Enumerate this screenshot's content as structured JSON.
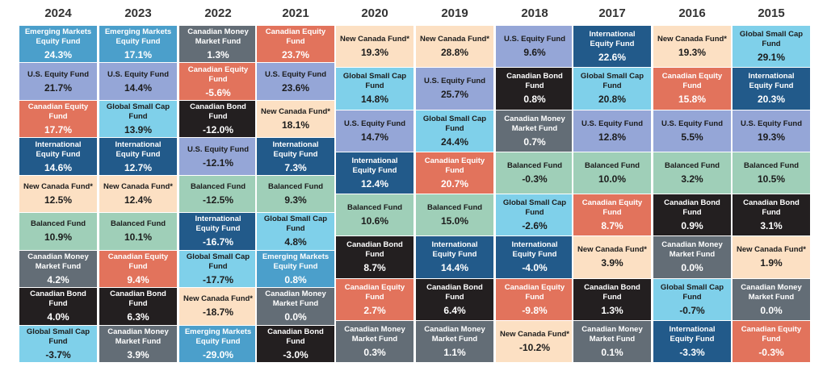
{
  "chart_data": {
    "type": "table",
    "fund_colors": {
      "Emerging Markets Equity Fund": "#4b9fcb",
      "U.S. Equity Fund": "#95a6d7",
      "Canadian Equity Fund": "#e2735c",
      "International Equity Fund": "#225a8a",
      "New Canada Fund*": "#fce0c3",
      "Balanced Fund": "#9fcfb8",
      "Canadian Money Market Fund": "#636d76",
      "Canadian Bond Fund": "#231f20",
      "Global Small Cap Fund": "#7fd0ea"
    },
    "dark_text_funds": [
      "U.S. Equity Fund",
      "New Canada Fund*",
      "Balanced Fund",
      "Global Small Cap Fund"
    ],
    "columns": [
      {
        "year": "2024",
        "cells": [
          {
            "fund": "Emerging Markets Equity Fund",
            "ret": "24.3%"
          },
          {
            "fund": "U.S. Equity Fund",
            "ret": "21.7%"
          },
          {
            "fund": "Canadian Equity Fund",
            "ret": "17.7%"
          },
          {
            "fund": "International Equity Fund",
            "ret": "14.6%"
          },
          {
            "fund": "New Canada Fund*",
            "ret": "12.5%"
          },
          {
            "fund": "Balanced Fund",
            "ret": "10.9%"
          },
          {
            "fund": "Canadian Money Market Fund",
            "ret": "4.2%"
          },
          {
            "fund": "Canadian Bond Fund",
            "ret": "4.0%"
          },
          {
            "fund": "Global Small Cap Fund",
            "ret": "-3.7%"
          }
        ]
      },
      {
        "year": "2023",
        "cells": [
          {
            "fund": "Emerging Markets Equity Fund",
            "ret": "17.1%"
          },
          {
            "fund": "U.S. Equity Fund",
            "ret": "14.4%"
          },
          {
            "fund": "Global Small Cap Fund",
            "ret": "13.9%"
          },
          {
            "fund": "International Equity Fund",
            "ret": "12.7%"
          },
          {
            "fund": "New Canada Fund*",
            "ret": "12.4%"
          },
          {
            "fund": "Balanced Fund",
            "ret": "10.1%"
          },
          {
            "fund": "Canadian Equity Fund",
            "ret": "9.4%"
          },
          {
            "fund": "Canadian Bond Fund",
            "ret": "6.3%"
          },
          {
            "fund": "Canadian Money Market Fund",
            "ret": "3.9%"
          }
        ]
      },
      {
        "year": "2022",
        "cells": [
          {
            "fund": "Canadian Money Market Fund",
            "ret": "1.3%"
          },
          {
            "fund": "Canadian Equity Fund",
            "ret": "-5.6%"
          },
          {
            "fund": "Canadian Bond Fund",
            "ret": "-12.0%"
          },
          {
            "fund": "U.S. Equity Fund",
            "ret": "-12.1%"
          },
          {
            "fund": "Balanced Fund",
            "ret": "-12.5%"
          },
          {
            "fund": "International Equity Fund",
            "ret": "-16.7%"
          },
          {
            "fund": "Global Small Cap Fund",
            "ret": "-17.7%"
          },
          {
            "fund": "New Canada Fund*",
            "ret": "-18.7%"
          },
          {
            "fund": "Emerging Markets Equity Fund",
            "ret": "-29.0%"
          }
        ]
      },
      {
        "year": "2021",
        "cells": [
          {
            "fund": "Canadian Equity Fund",
            "ret": "23.7%"
          },
          {
            "fund": "U.S. Equity Fund",
            "ret": "23.6%"
          },
          {
            "fund": "New Canada Fund*",
            "ret": "18.1%"
          },
          {
            "fund": "International Equity Fund",
            "ret": "7.3%"
          },
          {
            "fund": "Balanced Fund",
            "ret": "9.3%"
          },
          {
            "fund": "Global Small Cap Fund",
            "ret": "4.8%"
          },
          {
            "fund": "Emerging Markets Equity Fund",
            "ret": "0.8%"
          },
          {
            "fund": "Canadian Money Market Fund",
            "ret": "0.0%"
          },
          {
            "fund": "Canadian Bond Fund",
            "ret": "-3.0%"
          }
        ]
      },
      {
        "year": "2020",
        "cells": [
          {
            "fund": "New Canada Fund*",
            "ret": "19.3%"
          },
          {
            "fund": "Global Small Cap Fund",
            "ret": "14.8%"
          },
          {
            "fund": "U.S. Equity Fund",
            "ret": "14.7%"
          },
          {
            "fund": "International Equity Fund",
            "ret": "12.4%"
          },
          {
            "fund": "Balanced Fund",
            "ret": "10.6%"
          },
          {
            "fund": "Canadian Bond Fund",
            "ret": "8.7%"
          },
          {
            "fund": "Canadian Equity Fund",
            "ret": "2.7%"
          },
          {
            "fund": "Canadian Money Market Fund",
            "ret": "0.3%"
          }
        ]
      },
      {
        "year": "2019",
        "cells": [
          {
            "fund": "New Canada Fund*",
            "ret": "28.8%"
          },
          {
            "fund": "U.S. Equity Fund",
            "ret": "25.7%"
          },
          {
            "fund": "Global Small Cap Fund",
            "ret": "24.4%"
          },
          {
            "fund": "Canadian Equity Fund",
            "ret": "20.7%"
          },
          {
            "fund": "Balanced Fund",
            "ret": "15.0%"
          },
          {
            "fund": "International Equity Fund",
            "ret": "14.4%"
          },
          {
            "fund": "Canadian Bond Fund",
            "ret": "6.4%"
          },
          {
            "fund": "Canadian Money Market Fund",
            "ret": "1.1%"
          }
        ]
      },
      {
        "year": "2018",
        "cells": [
          {
            "fund": "U.S. Equity Fund",
            "ret": "9.6%"
          },
          {
            "fund": "Canadian Bond Fund",
            "ret": "0.8%"
          },
          {
            "fund": "Canadian Money Market Fund",
            "ret": "0.7%"
          },
          {
            "fund": "Balanced Fund",
            "ret": "-0.3%"
          },
          {
            "fund": "Global Small Cap Fund",
            "ret": "-2.6%"
          },
          {
            "fund": "International Equity Fund",
            "ret": "-4.0%"
          },
          {
            "fund": "Canadian Equity Fund",
            "ret": "-9.8%"
          },
          {
            "fund": "New Canada Fund*",
            "ret": "-10.2%"
          }
        ]
      },
      {
        "year": "2017",
        "cells": [
          {
            "fund": "International Equity Fund",
            "ret": "22.6%"
          },
          {
            "fund": "Global Small Cap Fund",
            "ret": "20.8%"
          },
          {
            "fund": "U.S. Equity Fund",
            "ret": "12.8%"
          },
          {
            "fund": "Balanced Fund",
            "ret": "10.0%"
          },
          {
            "fund": "Canadian Equity Fund",
            "ret": "8.7%"
          },
          {
            "fund": "New Canada Fund*",
            "ret": "3.9%"
          },
          {
            "fund": "Canadian Bond Fund",
            "ret": "1.3%"
          },
          {
            "fund": "Canadian Money Market Fund",
            "ret": "0.1%"
          }
        ]
      },
      {
        "year": "2016",
        "cells": [
          {
            "fund": "New Canada Fund*",
            "ret": "19.3%"
          },
          {
            "fund": "Canadian Equity Fund",
            "ret": "15.8%"
          },
          {
            "fund": "U.S. Equity Fund",
            "ret": "5.5%"
          },
          {
            "fund": "Balanced Fund",
            "ret": "3.2%"
          },
          {
            "fund": "Canadian Bond Fund",
            "ret": "0.9%"
          },
          {
            "fund": "Canadian Money Market Fund",
            "ret": "0.0%"
          },
          {
            "fund": "Global Small Cap Fund",
            "ret": "-0.7%"
          },
          {
            "fund": "International Equity Fund",
            "ret": "-3.3%"
          }
        ]
      },
      {
        "year": "2015",
        "cells": [
          {
            "fund": "Global Small Cap Fund",
            "ret": "29.1%"
          },
          {
            "fund": "International Equity Fund",
            "ret": "20.3%"
          },
          {
            "fund": "U.S. Equity Fund",
            "ret": "19.3%"
          },
          {
            "fund": "Balanced Fund",
            "ret": "10.5%"
          },
          {
            "fund": "Canadian Bond Fund",
            "ret": "3.1%"
          },
          {
            "fund": "New Canada Fund*",
            "ret": "1.9%"
          },
          {
            "fund": "Canadian Money Market Fund",
            "ret": "0.0%"
          },
          {
            "fund": "Canadian Equity Fund",
            "ret": "-0.3%"
          }
        ]
      }
    ]
  }
}
